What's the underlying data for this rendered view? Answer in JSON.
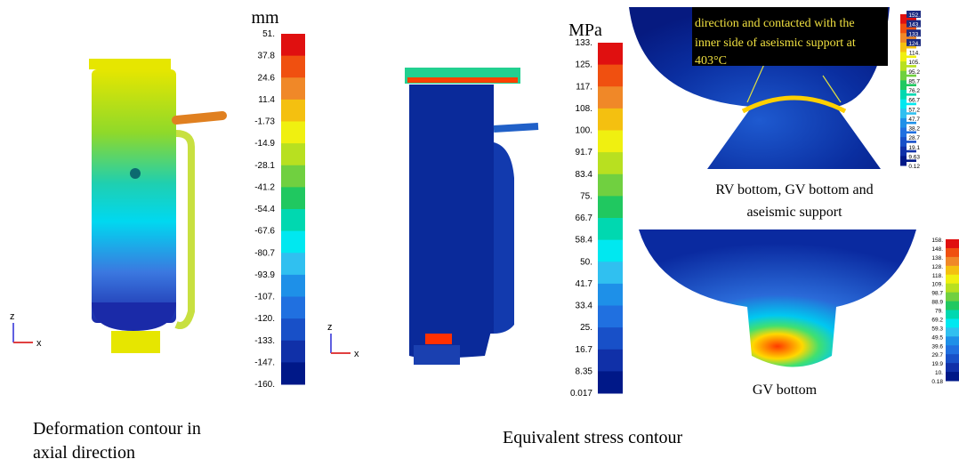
{
  "panels": [
    {
      "caption": [
        "Deformation contour in",
        "axial direction"
      ],
      "legend": {
        "unit": "mm",
        "labels": [
          "51.",
          "37.8",
          "24.6",
          "11.4",
          "-1.73",
          "-14.9",
          "-28.1",
          "-41.2",
          "-54.4",
          "-67.6",
          "-80.7",
          "-93.9",
          "-107.",
          "-120.",
          "-133.",
          "-147.",
          "-160."
        ]
      },
      "triad": [
        "z",
        "x"
      ]
    },
    {
      "caption": [
        "Equivalent stress contour"
      ],
      "legend": {
        "unit": "MPa",
        "labels": [
          "133.",
          "125.",
          "117.",
          "108.",
          "100.",
          "91.7",
          "83.4",
          "75.",
          "66.7",
          "58.4",
          "50.",
          "41.7",
          "33.4",
          "25.",
          "16.7",
          "8.35",
          "0.017"
        ]
      },
      "triad": [
        "z",
        "x"
      ]
    },
    {
      "caption": [
        "RV bottom, GV bottom and",
        "aseismic support"
      ],
      "annotation": [
        "direction and contacted with the",
        "inner side of aseismic support at",
        "403°C"
      ],
      "legend": {
        "labels": [
          "152.",
          "143.",
          "133.",
          "124.",
          "114.",
          "105.",
          "95.2",
          "85.7",
          "76.2",
          "66.7",
          "57.2",
          "47.7",
          "38.2",
          "28.7",
          "19.1",
          "9.63",
          "0.12"
        ]
      }
    },
    {
      "caption": [
        "GV bottom"
      ],
      "legend": {
        "labels": [
          "158.",
          "148.",
          "138.",
          "128.",
          "118.",
          "109.",
          "98.7",
          "88.9",
          "79.",
          "69.2",
          "59.3",
          "49.5",
          "39.6",
          "29.7",
          "19.9",
          "10.",
          "0.18"
        ]
      }
    }
  ]
}
